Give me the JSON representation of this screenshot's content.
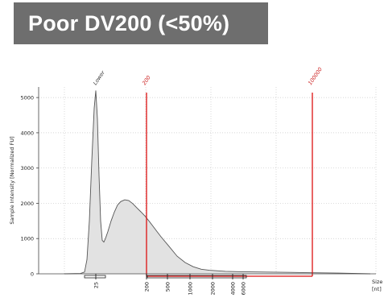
{
  "banner": {
    "title": "Poor DV200 (<50%)"
  },
  "chart_data": {
    "type": "area",
    "title": "",
    "ylabel": "Sample Intensity [Normalized FU]",
    "xlabel_lines": [
      "Size",
      "[nt]"
    ],
    "ylim": [
      0,
      5300
    ],
    "yticks": [
      0,
      1000,
      2000,
      3000,
      4000,
      5000
    ],
    "xticks": [
      "25",
      "200",
      "500",
      "1000",
      "2000",
      "4000",
      "6000"
    ],
    "grid": true,
    "series": [
      {
        "x": [
          80,
          100,
          105,
          108,
          111,
          114,
          117,
          119,
          121,
          123,
          125,
          127,
          129,
          131,
          134,
          138,
          142,
          146,
          150,
          155,
          160,
          165,
          170,
          175,
          180,
          185,
          190,
          195,
          200,
          210,
          220,
          230,
          240,
          250,
          260,
          280,
          300,
          330,
          360,
          390,
          420,
          460
        ],
        "values": [
          0,
          10,
          50,
          400,
          1500,
          3200,
          4700,
          5200,
          4400,
          2800,
          1500,
          950,
          900,
          1000,
          1200,
          1500,
          1750,
          1950,
          2050,
          2100,
          2080,
          1990,
          1870,
          1760,
          1640,
          1500,
          1350,
          1200,
          1050,
          780,
          500,
          320,
          200,
          130,
          100,
          70,
          60,
          50,
          40,
          30,
          20,
          0
        ]
      }
    ],
    "annotations": [
      {
        "label": "Lower",
        "x": 121,
        "color": "#333333"
      },
      {
        "label": "200",
        "x": 182,
        "color": "#cc2222"
      },
      {
        "label": "100000",
        "x": 388,
        "color": "#cc2222"
      }
    ],
    "region": {
      "x_start": 182,
      "x_end": 388,
      "color": "#dd1111"
    },
    "colors": {
      "fill": "#e2e2e2",
      "line": "#555555",
      "marker": "#dd1111",
      "grid": "#c8c8c8"
    }
  }
}
